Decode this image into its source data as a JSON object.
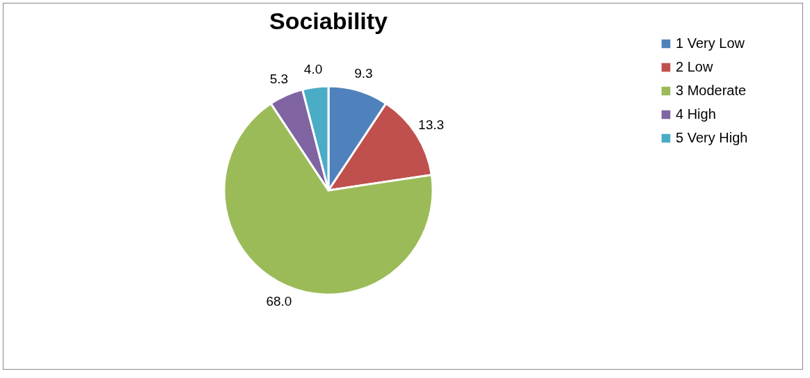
{
  "chart_data": {
    "type": "pie",
    "title": "Sociability",
    "categories": [
      "1 Very Low",
      "2 Low",
      "3 Moderate",
      "4 High",
      "5 Very High"
    ],
    "values": [
      9.3,
      13.3,
      68.0,
      5.3,
      4.0
    ],
    "colors": [
      "#4f81bd",
      "#c0504d",
      "#9bbb59",
      "#8064a2",
      "#4bacc6"
    ],
    "value_labels": [
      "9.3",
      "13.3",
      "68.0",
      "5.3",
      "4.0"
    ],
    "legend": "right"
  }
}
